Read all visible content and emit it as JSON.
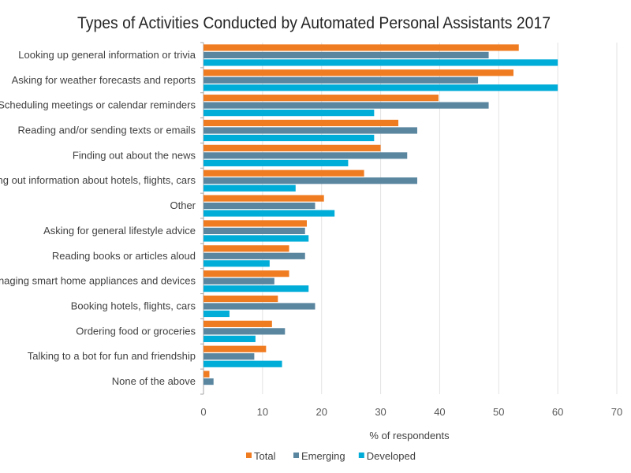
{
  "chart_data": {
    "type": "bar",
    "orientation": "horizontal",
    "title": "Types of Activities Conducted by Automated Personal Assistants 2017",
    "xlabel": "% of respondents",
    "ylabel": "",
    "xlim": [
      0,
      70
    ],
    "xticks": [
      0,
      10,
      20,
      30,
      40,
      50,
      60,
      70
    ],
    "grid": true,
    "legend_position": "bottom",
    "categories": [
      "Looking up general information or trivia",
      "Asking for weather forecasts and reports",
      "Scheduling meetings or calendar reminders",
      "Reading and/or sending texts or emails",
      "Finding out about the news",
      "Finding out information about hotels, flights, cars",
      "Other",
      "Asking for general lifestyle advice",
      "Reading books or articles aloud",
      "Managing smart home appliances and devices",
      "Booking hotels, flights, cars",
      "Ordering food or groceries",
      "Talking to a bot for fun and friendship",
      "None of the above"
    ],
    "series": [
      {
        "name": "Total",
        "color": "#F07C22",
        "values": [
          53.4,
          52.5,
          39.8,
          33.0,
          30.0,
          27.2,
          20.4,
          17.5,
          14.5,
          14.5,
          12.6,
          11.6,
          10.6,
          1.0
        ]
      },
      {
        "name": "Emerging",
        "color": "#5A86A0",
        "values": [
          48.3,
          46.5,
          48.3,
          36.2,
          34.5,
          36.2,
          18.9,
          17.2,
          17.2,
          12.0,
          18.9,
          13.8,
          8.6,
          1.7
        ]
      },
      {
        "name": "Developed",
        "color": "#00ACD8",
        "values": [
          60.0,
          60.0,
          28.9,
          28.9,
          24.5,
          15.6,
          22.2,
          17.8,
          11.2,
          17.8,
          4.4,
          8.8,
          13.3,
          0
        ]
      }
    ]
  }
}
